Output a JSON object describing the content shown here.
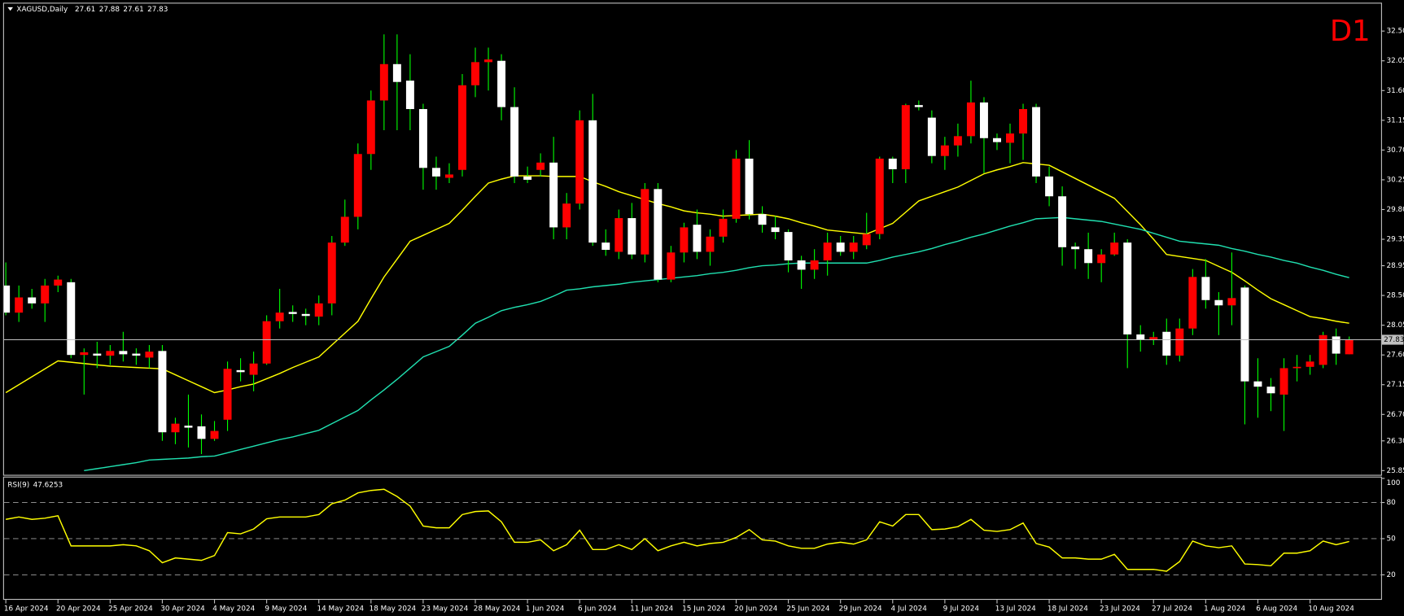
{
  "chart_data": [
    {
      "type": "candlestick",
      "title": "XAGUSD,Daily",
      "timeframe": "D1",
      "categories": [
        "16 Apr 2024",
        null,
        null,
        null,
        "20 Apr 2024",
        null,
        null,
        null,
        "25 Apr 2024",
        null,
        null,
        null,
        "30 Apr 2024",
        null,
        null,
        null,
        "4 May 2024",
        null,
        null,
        null,
        "9 May 2024",
        null,
        null,
        null,
        "14 May 2024",
        null,
        null,
        null,
        "18 May 2024",
        null,
        null,
        null,
        "23 May 2024",
        null,
        null,
        null,
        "28 May 2024",
        null,
        null,
        null,
        "1 Jun 2024",
        null,
        null,
        null,
        "6 Jun 2024",
        null,
        null,
        null,
        "11 Jun 2024",
        null,
        null,
        null,
        "15 Jun 2024",
        null,
        null,
        null,
        "20 Jun 2024",
        null,
        null,
        null,
        "25 Jun 2024",
        null,
        null,
        null,
        "29 Jun 2024",
        null,
        null,
        null,
        "4 Jul 2024",
        null,
        null,
        null,
        "9 Jul 2024",
        null,
        null,
        null,
        "13 Jul 2024",
        null,
        null,
        null,
        "18 Jul 2024",
        null,
        null,
        null,
        "23 Jul 2024",
        null,
        null,
        null,
        "27 Jul 2024",
        null,
        null,
        null,
        "1 Aug 2024",
        null,
        null,
        null,
        "6 Aug 2024",
        null,
        null,
        null,
        "10 Aug 2024",
        null,
        null,
        null
      ],
      "open": [
        28.65,
        28.24,
        28.47,
        28.38,
        28.65,
        28.7,
        27.6,
        27.62,
        27.59,
        27.66,
        27.62,
        27.56,
        27.66,
        26.43,
        26.53,
        26.52,
        26.33,
        26.62,
        27.37,
        27.3,
        27.47,
        28.11,
        28.25,
        28.22,
        28.18,
        28.38,
        29.3,
        29.69,
        30.64,
        31.45,
        32.0,
        31.75,
        31.32,
        30.43,
        30.28,
        30.4,
        31.68,
        32.03,
        32.05,
        31.35,
        30.3,
        30.4,
        30.51,
        29.53,
        29.89,
        31.15,
        29.3,
        29.16,
        29.67,
        29.12,
        30.11,
        28.74,
        29.15,
        29.57,
        29.16,
        29.39,
        29.66,
        30.57,
        29.73,
        29.53,
        29.46,
        29.03,
        28.89,
        29.03,
        29.3,
        29.16,
        29.26,
        29.43,
        30.57,
        30.41,
        31.38,
        31.19,
        30.61,
        30.77,
        30.91,
        31.42,
        30.88,
        30.81,
        30.95,
        31.35,
        30.3,
        30.0,
        29.24,
        29.2,
        28.99,
        29.12,
        29.3,
        27.91,
        27.83,
        27.95,
        27.59,
        28.0,
        28.78,
        28.43,
        28.35,
        28.62,
        27.2,
        27.12,
        27.0,
        27.4,
        27.42,
        27.45,
        27.88,
        27.61
      ],
      "high": [
        29.0,
        28.65,
        28.6,
        28.75,
        28.8,
        28.75,
        27.7,
        27.8,
        27.75,
        27.95,
        27.7,
        27.75,
        27.75,
        26.65,
        27.0,
        26.7,
        26.6,
        27.5,
        27.55,
        27.65,
        28.2,
        28.6,
        28.35,
        28.3,
        28.5,
        29.4,
        29.95,
        30.8,
        31.6,
        32.45,
        32.45,
        32.15,
        31.4,
        30.6,
        30.5,
        31.85,
        32.25,
        32.25,
        32.15,
        31.65,
        30.45,
        30.65,
        30.9,
        30.05,
        31.3,
        31.55,
        29.5,
        29.8,
        29.9,
        30.2,
        30.2,
        29.25,
        29.6,
        29.8,
        29.5,
        29.8,
        30.7,
        30.85,
        29.85,
        29.7,
        29.5,
        29.1,
        29.2,
        29.45,
        29.4,
        29.4,
        29.75,
        30.6,
        30.6,
        31.4,
        31.45,
        31.3,
        30.9,
        31.1,
        31.75,
        31.5,
        30.95,
        31.1,
        31.4,
        31.4,
        30.45,
        30.15,
        29.3,
        29.45,
        29.2,
        29.45,
        29.35,
        28.05,
        27.95,
        28.15,
        28.15,
        28.9,
        29.05,
        28.55,
        29.15,
        28.65,
        27.55,
        27.25,
        27.55,
        27.6,
        27.6,
        27.95,
        28.0,
        27.88
      ],
      "low": [
        28.2,
        28.1,
        28.3,
        28.1,
        28.55,
        27.55,
        27.0,
        27.4,
        27.45,
        27.5,
        27.45,
        27.4,
        26.3,
        26.25,
        26.2,
        26.1,
        26.3,
        26.45,
        27.2,
        27.05,
        27.45,
        28.0,
        28.1,
        28.05,
        28.05,
        28.2,
        29.25,
        29.5,
        30.4,
        31.0,
        31.0,
        31.0,
        30.1,
        30.1,
        30.2,
        30.3,
        31.5,
        31.6,
        31.15,
        30.2,
        30.2,
        30.3,
        29.35,
        29.35,
        29.8,
        29.25,
        29.1,
        29.05,
        29.05,
        29.0,
        28.7,
        28.7,
        29.0,
        29.05,
        28.95,
        29.3,
        29.6,
        29.65,
        29.45,
        29.35,
        28.85,
        28.6,
        28.75,
        28.8,
        29.1,
        29.05,
        29.2,
        29.35,
        30.2,
        30.2,
        31.3,
        30.5,
        30.4,
        30.6,
        30.8,
        30.35,
        30.7,
        30.5,
        30.55,
        30.2,
        29.85,
        28.95,
        28.9,
        28.75,
        28.7,
        29.1,
        27.4,
        27.65,
        27.75,
        27.45,
        27.5,
        27.9,
        28.3,
        27.9,
        28.05,
        26.55,
        26.65,
        26.75,
        26.45,
        27.2,
        27.3,
        27.4,
        27.45,
        27.61
      ],
      "close": [
        28.24,
        28.47,
        28.38,
        28.65,
        28.74,
        27.6,
        27.64,
        27.59,
        27.66,
        27.61,
        27.59,
        27.65,
        26.43,
        26.56,
        26.5,
        26.33,
        26.45,
        27.39,
        27.34,
        27.47,
        28.11,
        28.24,
        28.22,
        28.19,
        28.38,
        29.3,
        29.69,
        30.64,
        31.45,
        32.0,
        31.73,
        31.32,
        30.43,
        30.3,
        30.33,
        31.68,
        32.03,
        32.07,
        31.35,
        30.3,
        30.25,
        30.51,
        29.53,
        29.89,
        31.15,
        29.3,
        29.19,
        29.67,
        29.12,
        30.11,
        28.74,
        29.15,
        29.53,
        29.16,
        29.39,
        29.66,
        30.57,
        29.73,
        29.57,
        29.46,
        29.03,
        28.89,
        29.03,
        29.3,
        29.16,
        29.3,
        29.43,
        30.57,
        30.41,
        31.38,
        31.35,
        30.61,
        30.77,
        30.91,
        31.42,
        30.88,
        30.82,
        30.95,
        31.32,
        30.3,
        30.0,
        29.23,
        29.2,
        28.99,
        29.12,
        29.3,
        27.91,
        27.83,
        27.87,
        27.59,
        28.0,
        28.78,
        28.43,
        28.35,
        28.46,
        27.2,
        27.12,
        27.02,
        27.4,
        27.42,
        27.5,
        27.9,
        27.62,
        27.83
      ],
      "up_color": "#ff0000",
      "down_color": "#ffffff",
      "wick_color": "#00ff00",
      "series": [
        {
          "color": "#ffff00",
          "values": [
            27.03,
            27.15,
            27.27,
            27.39,
            27.51,
            27.49,
            27.47,
            27.45,
            27.43,
            27.42,
            27.41,
            27.4,
            27.39,
            27.3,
            27.21,
            27.12,
            27.03,
            27.07,
            27.12,
            27.16,
            27.24,
            27.32,
            27.41,
            27.49,
            27.57,
            27.75,
            27.93,
            28.11,
            28.45,
            28.78,
            29.05,
            29.32,
            29.41,
            29.5,
            29.59,
            29.79,
            30.0,
            30.2,
            30.26,
            30.31,
            30.31,
            30.31,
            30.3,
            30.3,
            30.3,
            30.22,
            30.15,
            30.07,
            30.01,
            29.95,
            29.89,
            29.84,
            29.78,
            29.75,
            29.73,
            29.7,
            29.71,
            29.72,
            29.73,
            29.7,
            29.66,
            29.6,
            29.55,
            29.49,
            29.47,
            29.45,
            29.43,
            29.51,
            29.59,
            29.76,
            29.93,
            30.0,
            30.07,
            30.14,
            30.24,
            30.34,
            30.4,
            30.45,
            30.51,
            30.49,
            30.47,
            30.37,
            30.27,
            30.17,
            30.07,
            29.97,
            29.77,
            29.57,
            29.35,
            29.12,
            29.09,
            29.06,
            29.03,
            28.94,
            28.85,
            28.72,
            28.58,
            28.45,
            28.36,
            28.27,
            28.18,
            28.15,
            28.11,
            28.08
          ]
        },
        {
          "color": "#20e0b0",
          "values": [
            null,
            null,
            null,
            null,
            null,
            null,
            25.85,
            25.88,
            25.91,
            25.94,
            25.97,
            26.01,
            26.02,
            26.03,
            26.04,
            26.06,
            26.07,
            26.12,
            26.17,
            26.22,
            26.27,
            26.32,
            26.36,
            26.41,
            26.46,
            26.56,
            26.66,
            26.76,
            26.92,
            27.07,
            27.23,
            27.4,
            27.57,
            27.65,
            27.73,
            27.9,
            28.08,
            28.17,
            28.27,
            28.32,
            28.36,
            28.41,
            28.49,
            28.58,
            28.6,
            28.63,
            28.65,
            28.67,
            28.7,
            28.72,
            28.74,
            28.76,
            28.78,
            28.8,
            28.83,
            28.85,
            28.88,
            28.92,
            28.95,
            28.96,
            28.98,
            28.99,
            28.99,
            28.99,
            28.99,
            28.99,
            28.99,
            29.03,
            29.08,
            29.12,
            29.16,
            29.21,
            29.27,
            29.32,
            29.38,
            29.43,
            29.49,
            29.55,
            29.6,
            29.66,
            29.67,
            29.68,
            29.66,
            29.64,
            29.62,
            29.58,
            29.54,
            29.5,
            29.44,
            29.38,
            29.32,
            29.3,
            29.28,
            29.26,
            29.21,
            29.17,
            29.12,
            29.08,
            29.03,
            28.99,
            28.93,
            28.88,
            28.82,
            28.77
          ]
        }
      ],
      "ylim": [
        25.8,
        32.97
      ],
      "yticks": [
        {
          "value": 32.5,
          "label": "32.50"
        },
        32.05,
        {
          "value": 31.6,
          "label": "31.60"
        },
        31.15,
        {
          "value": 30.7,
          "label": "30.70"
        },
        30.25,
        {
          "value": 29.8,
          "label": "29.80"
        },
        29.35,
        28.95,
        {
          "value": 28.5,
          "label": "28.50"
        },
        28.05,
        {
          "value": 27.6,
          "label": "27.60"
        },
        27.15,
        {
          "value": 26.7,
          "label": "26.70"
        },
        {
          "value": 26.3,
          "label": "26.30"
        },
        25.85
      ],
      "price_line_color": "#c0c0c0"
    },
    {
      "type": "line",
      "title": "RSI(9)",
      "color": "#ffff00",
      "values": [
        66,
        68,
        66,
        67,
        69,
        44,
        44,
        44,
        44,
        45,
        44,
        40,
        30,
        34,
        33,
        32,
        36,
        55,
        54,
        58,
        66.5,
        68,
        68,
        68,
        70,
        79,
        82,
        88,
        90,
        91,
        85,
        77,
        60.5,
        59,
        59,
        70,
        72.5,
        73,
        64,
        47,
        47,
        49,
        40,
        45,
        57,
        41,
        41,
        45,
        41,
        50,
        40,
        44,
        47,
        44,
        46,
        47,
        51,
        57.5,
        49,
        48,
        44,
        42,
        42,
        45.5,
        47,
        45.5,
        49,
        64,
        60.5,
        70,
        70,
        57.5,
        58,
        60,
        66,
        57,
        56,
        57.5,
        63,
        46,
        43,
        34,
        34,
        33,
        33,
        37,
        24.5,
        24.5,
        24.5,
        23,
        31,
        48,
        44,
        42.5,
        44,
        29,
        28.5,
        27.5,
        38,
        38,
        40,
        48,
        45,
        47.6253
      ],
      "ylim": [
        0,
        100
      ],
      "yticks": [
        20,
        50,
        80,
        100
      ],
      "grid": true
    }
  ]
}
